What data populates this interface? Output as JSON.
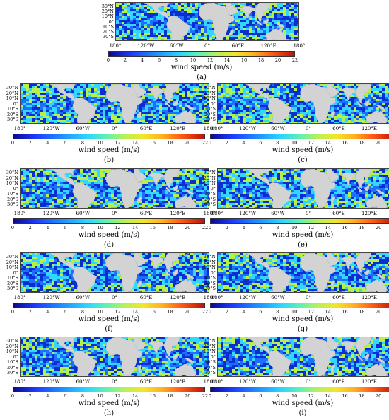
{
  "lat_labels": [
    "30°N",
    "20°N",
    "10°N",
    "0°",
    "10°S",
    "20°S",
    "30°S"
  ],
  "lon_labels": [
    "180°",
    "120°W",
    "60°W",
    "0°",
    "60°E",
    "120°E",
    "180°"
  ],
  "colorbar": {
    "ticks": [
      "0",
      "2",
      "4",
      "6",
      "8",
      "10",
      "12",
      "14",
      "16",
      "18",
      "20",
      "22"
    ],
    "unit_label": "wind speed (m/s)",
    "min": 0,
    "max": 22
  },
  "colors": {
    "land": "#d3d3d3",
    "ocean_base": "#1f6fff",
    "low_wind": "#0a2fd0",
    "high_wind": "#33d6ff",
    "peak_wind": "#b8f04a"
  },
  "panels": [
    {
      "id": "a",
      "caption": "(a)"
    },
    {
      "id": "b",
      "caption": "(b)"
    },
    {
      "id": "c",
      "caption": "(c)"
    },
    {
      "id": "d",
      "caption": "(d)"
    },
    {
      "id": "e",
      "caption": "(e)"
    },
    {
      "id": "f",
      "caption": "(f)"
    },
    {
      "id": "g",
      "caption": "(g)"
    },
    {
      "id": "h",
      "caption": "(h)"
    },
    {
      "id": "i",
      "caption": "(i)"
    }
  ]
}
